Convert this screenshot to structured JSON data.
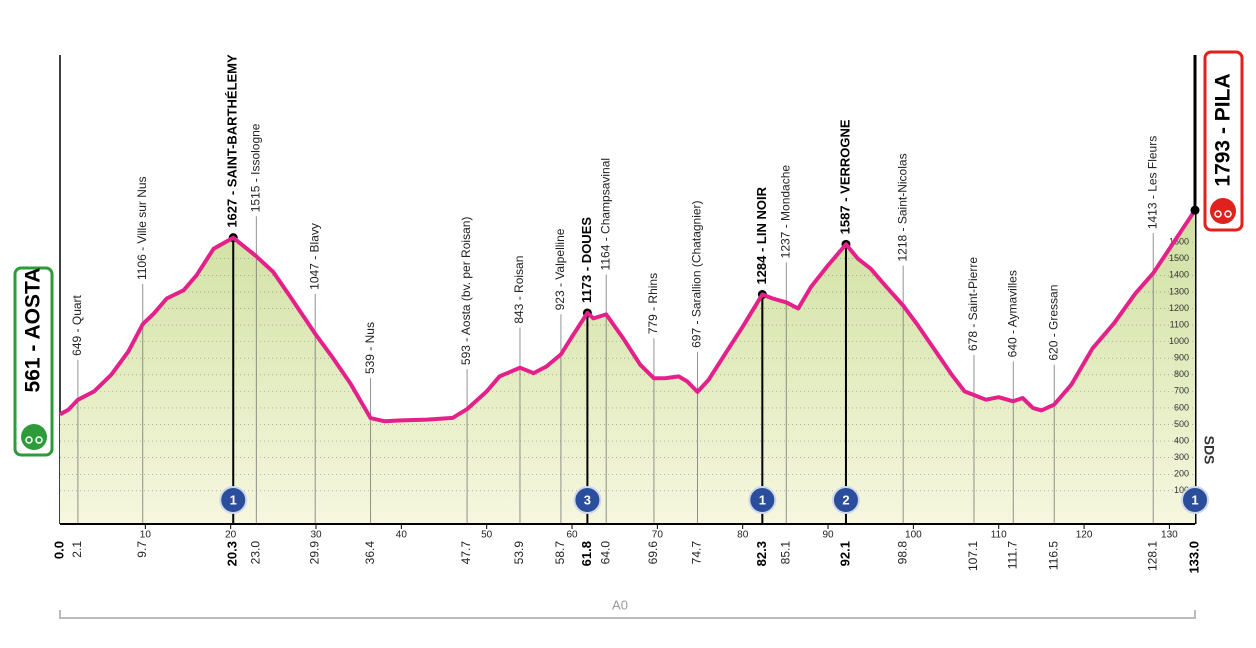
{
  "chart_data": {
    "type": "profile",
    "xlim": [
      0,
      133
    ],
    "ylim": [
      -100,
      1800
    ],
    "xticks": [
      10,
      20,
      30,
      40,
      50,
      60,
      70,
      80,
      90,
      100,
      110,
      120,
      130
    ],
    "yticks": [
      100,
      200,
      300,
      400,
      500,
      600,
      700,
      800,
      900,
      1000,
      1100,
      1200,
      1300,
      1400,
      1500,
      1600
    ],
    "grid": true,
    "color": "#e4218b",
    "profile": {
      "km": [
        0,
        1,
        2.1,
        4,
        6,
        8,
        9.7,
        11,
        12.5,
        14.5,
        16,
        18,
        20.3,
        23,
        25,
        27,
        29.9,
        32,
        34,
        36.4,
        38,
        40,
        43,
        46,
        47.7,
        50,
        51.5,
        53.9,
        55.5,
        57,
        58.7,
        60,
        61.8,
        62.5,
        64,
        66,
        68,
        69.6,
        71,
        72.5,
        73.5,
        74.7,
        76,
        78,
        80,
        82.3,
        83.5,
        85.1,
        86.5,
        88,
        90,
        92.1,
        93.5,
        95,
        96.5,
        98.8,
        100.5,
        102.5,
        104.5,
        106,
        107.1,
        108.5,
        110,
        111.7,
        112.8,
        114,
        115,
        116.5,
        118.5,
        121,
        123.5,
        126,
        128.1,
        130,
        133
      ],
      "altitude": [
        561,
        590,
        649,
        700,
        800,
        940,
        1106,
        1170,
        1260,
        1310,
        1400,
        1560,
        1627,
        1515,
        1420,
        1270,
        1047,
        900,
        750,
        539,
        520,
        525,
        530,
        540,
        593,
        700,
        790,
        843,
        810,
        850,
        923,
        1030,
        1173,
        1140,
        1164,
        1020,
        860,
        779,
        780,
        790,
        760,
        697,
        770,
        930,
        1090,
        1284,
        1260,
        1237,
        1200,
        1330,
        1460,
        1587,
        1500,
        1440,
        1350,
        1218,
        1100,
        950,
        800,
        700,
        678,
        650,
        665,
        640,
        660,
        600,
        585,
        620,
        740,
        960,
        1110,
        1290,
        1413,
        1560,
        1793
      ]
    },
    "start": {
      "label": "561 - AOSTA",
      "altitude": 561,
      "km": {
        "value": 0,
        "label": "0.0"
      }
    },
    "finish": {
      "label": "1793 - PILA",
      "altitude": 1793,
      "km": {
        "value": 133,
        "label": "133.0"
      },
      "gpm": "1"
    },
    "waypoints": [
      {
        "km": 2.1,
        "altitude": 649,
        "label": "649 - Quart"
      },
      {
        "km": 9.7,
        "altitude": 1106,
        "label": "1106 - Ville sur Nus"
      },
      {
        "km": 20.3,
        "altitude": 1627,
        "label": "1627 - SAINT-BARTHÉLEMY",
        "bold": true,
        "gpm": "1"
      },
      {
        "km": {
          "value": 23,
          "label": "23.0"
        },
        "altitude": 1515,
        "label": "1515 - Issologne"
      },
      {
        "km": 29.9,
        "altitude": 1047,
        "label": "1047 - Blavy"
      },
      {
        "km": 36.4,
        "altitude": 539,
        "label": "539 - Nus"
      },
      {
        "km": 47.7,
        "altitude": 593,
        "label": "593 - Aosta (bv. per Roisan)"
      },
      {
        "km": 53.9,
        "altitude": 843,
        "label": "843 - Roisan"
      },
      {
        "km": 58.7,
        "altitude": 923,
        "label": "923 - Valpelline"
      },
      {
        "km": 61.8,
        "altitude": 1173,
        "label": "1173 - DOUES",
        "bold": true,
        "gpm": "3"
      },
      {
        "km": {
          "value": 64,
          "label": "64.0"
        },
        "altitude": 1164,
        "label": "1164 - Champsavinal"
      },
      {
        "km": 69.6,
        "altitude": 779,
        "label": "779 - Rhins"
      },
      {
        "km": 74.7,
        "altitude": 697,
        "label": "697 - Sarallion (Chatagnier)"
      },
      {
        "km": 82.3,
        "altitude": 1284,
        "label": "1284 - LIN NOIR",
        "bold": true,
        "gpm": "1"
      },
      {
        "km": 85.1,
        "altitude": 1237,
        "label": "1237 - Mondache"
      },
      {
        "km": 92.1,
        "altitude": 1587,
        "label": "1587 - VERROGNE",
        "bold": true,
        "gpm": "2"
      },
      {
        "km": 98.8,
        "altitude": 1218,
        "label": "1218 - Saint-Nicolas"
      },
      {
        "km": 107.1,
        "altitude": 678,
        "label": "678 - Saint-Pierre"
      },
      {
        "km": 111.7,
        "altitude": 640,
        "label": "640 - Aymavilles"
      },
      {
        "km": 116.5,
        "altitude": 620,
        "label": "620 - Gressan"
      },
      {
        "km": 128.1,
        "altitude": 1413,
        "label": "1413 - Les Fleurs"
      }
    ],
    "segment_label": "A0",
    "logo": "SDS"
  }
}
